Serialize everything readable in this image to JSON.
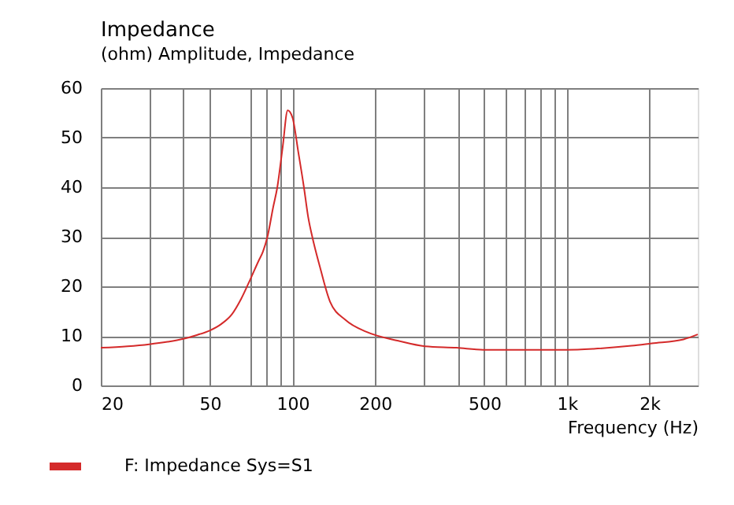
{
  "chart_data": {
    "type": "line",
    "title": "Impedance",
    "subtitle": "(ohm)  Amplitude, Impedance",
    "xlabel": "Frequency  (Hz)",
    "log": "x",
    "xlim": [
      20,
      3000
    ],
    "ylim": [
      0,
      60
    ],
    "xticks": [
      20,
      {
        "value": 30,
        "label": null
      },
      {
        "value": 40,
        "label": null
      },
      50,
      {
        "value": 70,
        "label": null
      },
      {
        "value": 80,
        "label": null
      },
      {
        "value": 90,
        "label": null
      },
      100,
      200,
      {
        "value": 300,
        "label": null
      },
      {
        "value": 400,
        "label": null
      },
      500,
      {
        "value": 600,
        "label": null
      },
      {
        "value": 700,
        "label": null
      },
      {
        "value": 800,
        "label": null
      },
      {
        "value": 900,
        "label": null
      },
      {
        "value": 1000,
        "label": "1k"
      },
      {
        "value": 2000,
        "label": "2k"
      }
    ],
    "yticks": [
      0,
      10,
      20,
      30,
      40,
      50,
      60
    ],
    "grid": true,
    "legend": "bottom left",
    "series": [
      {
        "name": "F: Impedance Sys=S1",
        "color": "#d42a2a",
        "x": [
          20,
          25,
          30,
          35,
          40,
          45,
          50,
          55,
          60,
          65,
          70,
          75,
          78,
          81,
          85,
          88,
          92,
          96,
          100,
          105,
          110,
          114,
          118,
          126,
          137,
          156,
          186,
          243,
          304,
          396,
          496,
          1000,
          1253,
          1720,
          2040,
          2660,
          3000
        ],
        "values": [
          7.6,
          7.9,
          8.3,
          8.8,
          9.4,
          10.2,
          11.1,
          12.4,
          14.3,
          17.5,
          21.3,
          25,
          27,
          30,
          36,
          40,
          48,
          55.5,
          54,
          47,
          40,
          34,
          30,
          23.8,
          16.9,
          13.2,
          10.8,
          9.0,
          7.9,
          7.6,
          7.2,
          7.2,
          7.4,
          8.0,
          8.5,
          9.3,
          10.3
        ]
      }
    ]
  }
}
